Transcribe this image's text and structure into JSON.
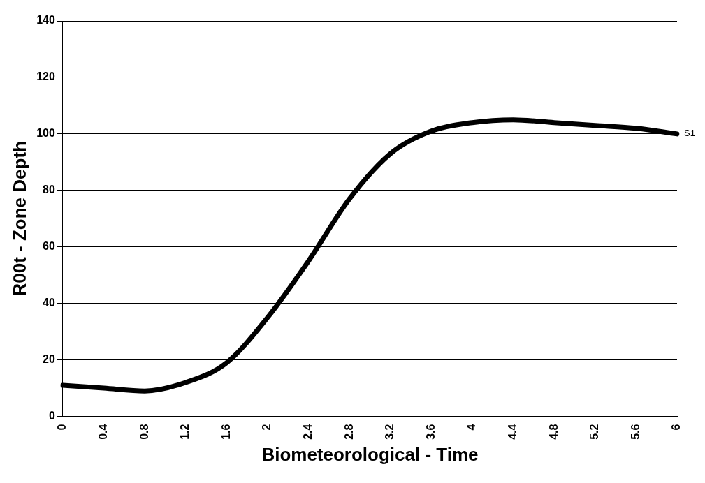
{
  "chart_data": {
    "type": "line",
    "xlabel": "Biometeorological - Time",
    "ylabel": "R00t - Zone Depth",
    "categories": [
      "0",
      "0.4",
      "0.8",
      "1.2",
      "1.6",
      "2",
      "2.4",
      "2.8",
      "3.2",
      "3.6",
      "4",
      "4.4",
      "4.8",
      "5.2",
      "5.6",
      "6"
    ],
    "series": [
      {
        "name": "S1",
        "color": "#000000",
        "values": [
          11,
          10,
          9,
          12,
          19,
          35,
          55,
          77,
          93,
          101,
          104,
          105,
          104,
          103,
          102,
          100
        ]
      }
    ],
    "ylim": [
      0,
      140
    ],
    "yticks": [
      0,
      20,
      40,
      60,
      80,
      100,
      120,
      140
    ],
    "grid": "y",
    "legend": false,
    "marker": "none",
    "line_style": "solid"
  }
}
